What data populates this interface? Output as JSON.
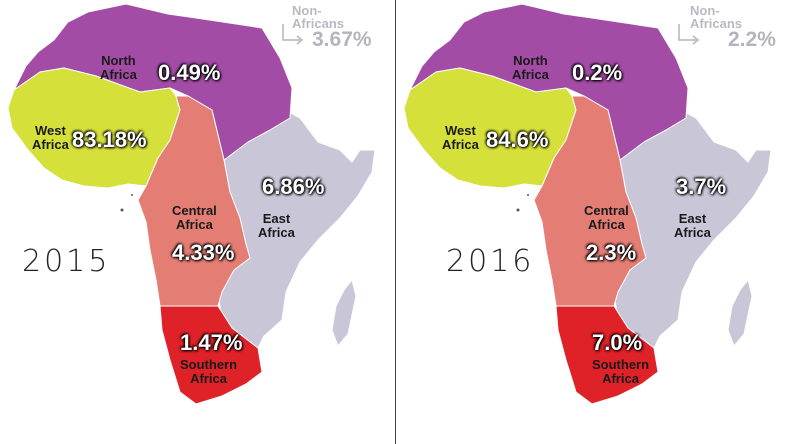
{
  "colors": {
    "north": "#a24ca6",
    "west": "#d5e03a",
    "central": "#e47e74",
    "east": "#c9c6d8",
    "southern": "#df2128",
    "border": "#7a6f7d",
    "nonafricans": "#b4b4be"
  },
  "panels": [
    {
      "year": "2015",
      "regions": {
        "north": {
          "name_line1": "North",
          "name_line2": "Africa",
          "value": "0.49%"
        },
        "west": {
          "name_line1": "West",
          "name_line2": "Africa",
          "value": "83.18%"
        },
        "central": {
          "name_line1": "Central",
          "name_line2": "Africa",
          "value": "4.33%"
        },
        "east": {
          "name_line1": "East",
          "name_line2": "Africa",
          "value": "6.86%"
        },
        "southern": {
          "name_line1": "Southern",
          "name_line2": "Africa",
          "value": "1.47%"
        }
      },
      "nonafricans": {
        "label_line1": "Non-",
        "label_line2": "Africans",
        "value": "3.67%"
      }
    },
    {
      "year": "2016",
      "regions": {
        "north": {
          "name_line1": "North",
          "name_line2": "Africa",
          "value": "0.2%"
        },
        "west": {
          "name_line1": "West",
          "name_line2": "Africa",
          "value": "84.6%"
        },
        "central": {
          "name_line1": "Central",
          "name_line2": "Africa",
          "value": "2.3%"
        },
        "east": {
          "name_line1": "East",
          "name_line2": "Africa",
          "value": "3.7%"
        },
        "southern": {
          "name_line1": "Southern",
          "name_line2": "Africa",
          "value": "7.0%"
        }
      },
      "nonafricans": {
        "label_line1": "Non-",
        "label_line2": "Africans",
        "value": "2.2%"
      }
    }
  ]
}
